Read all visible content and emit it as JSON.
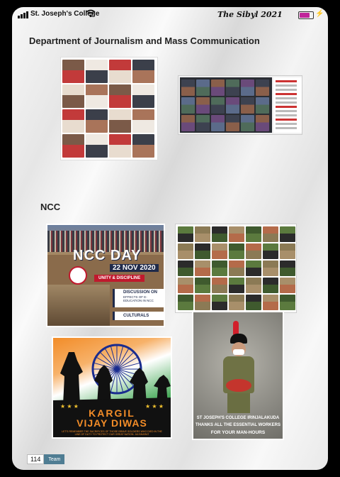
{
  "status_bar": {
    "carrier": "St. Joseph's College",
    "brand": "The Sibyl 2021",
    "battery_level": 0.72
  },
  "sections": {
    "journalism_title": "Department of Journalism and Mass Communication",
    "ncc_title": "NCC"
  },
  "posters": {
    "ncc_day": {
      "title": "NCC DAY",
      "date": "22 NOV 2020",
      "ribbon": "UNITY & DISCIPLINE",
      "discussion_heading": "DISCUSSION ON",
      "discussion_topic": "EFFECTS OF E-EDUCATION IN NCC",
      "culturals": "CULTURALS"
    },
    "kargil": {
      "line1": "KARGIL",
      "line2": "VIJAY DIWAS",
      "tribute": "LET'S REMEMBER THE SACRIFICES OF THOSE BRAVE SOLDIERS WHO DIED IN THE LINE OF DUTY TO PROTECT OUR GREAT NATION. JAI BHARAT"
    },
    "thanks": {
      "line1": "ST JOSEPH'S COLLEGE IRINJALAKUDA",
      "line2": "THANKS ALL THE ESSENTIAL WORKERS",
      "line3": "FOR YOUR MAN-HOURS"
    }
  },
  "footer": {
    "page_number": "114",
    "tag": "Team"
  },
  "colors": {
    "accent_purple": "#c0269a",
    "ncc_red": "#c0192d",
    "ncc_navy": "#1f2a4a",
    "kargil_orange": "#f28c28",
    "kargil_green": "#2f9e44",
    "footer_tag": "#4f7d93"
  }
}
